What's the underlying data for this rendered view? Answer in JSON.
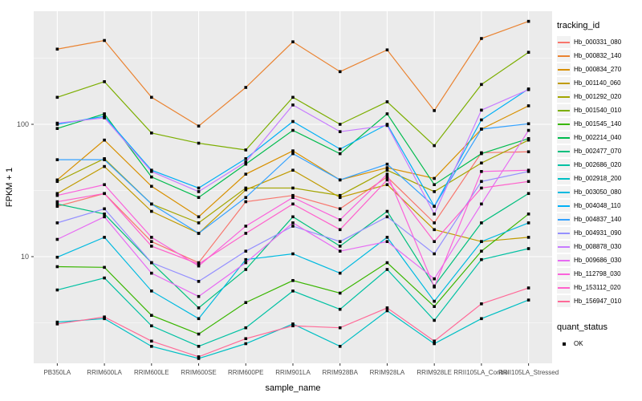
{
  "chart_data": {
    "type": "line",
    "title": "",
    "xlabel": "sample_name",
    "ylabel": "FPKM + 1",
    "y_scale": "log10",
    "yticks": [
      10,
      100
    ],
    "ylim": [
      1.56,
      716
    ],
    "grid": "on",
    "panel_bg": "#EBEBEB",
    "grid_color": "#FFFFFF",
    "axis_text_color": "#4D4D4D",
    "marker": "black-square",
    "legend_title": "tracking_id",
    "quant_legend_title": "quant_status",
    "quant_legend_label": "OK",
    "categories": [
      "PB350LA",
      "RRIM600LA",
      "RRIM600LE",
      "RRIM600SE",
      "RRIM600PE",
      "RRIM901LA",
      "RRIM928BA",
      "RRIM928LA",
      "RRIM928LE",
      "RRII105LA_Control",
      "RRII105LA_Stressed"
    ],
    "series": [
      {
        "name": "Hb_000331_080",
        "color": "#F8766D",
        "values": [
          24,
          30,
          13,
          9,
          26,
          29,
          23,
          40,
          18,
          61,
          62
        ]
      },
      {
        "name": "Hb_000832_140",
        "color": "#EA8331",
        "values": [
          370,
          430,
          160,
          97,
          190,
          420,
          250,
          365,
          127,
          445,
          600
        ]
      },
      {
        "name": "Hb_000834_270",
        "color": "#D89000",
        "values": [
          38,
          76,
          34,
          20,
          42,
          63,
          38,
          47,
          39,
          92,
          138
        ]
      },
      {
        "name": "Hb_001140_060",
        "color": "#C09B00",
        "values": [
          30,
          48,
          22,
          15,
          32,
          45,
          28,
          35,
          16,
          13,
          14
        ]
      },
      {
        "name": "Hb_001292_020",
        "color": "#A3A500",
        "values": [
          37,
          55,
          25,
          18,
          33,
          33,
          29,
          45,
          31,
          51,
          76
        ]
      },
      {
        "name": "Hb_001540_010",
        "color": "#7CAE00",
        "values": [
          160,
          210,
          86,
          72,
          64,
          160,
          100,
          148,
          69,
          200,
          350
        ]
      },
      {
        "name": "Hb_001545_140",
        "color": "#39B600",
        "values": [
          8.4,
          8.3,
          3.6,
          2.6,
          4.5,
          6.6,
          5.3,
          9,
          4.2,
          11,
          21
        ]
      },
      {
        "name": "Hb_002214_040",
        "color": "#00BB4E",
        "values": [
          93,
          120,
          40,
          28,
          50,
          90,
          60,
          120,
          35,
          60,
          78
        ]
      },
      {
        "name": "Hb_002477_070",
        "color": "#00BF7D",
        "values": [
          25,
          21,
          9,
          4.1,
          8,
          20,
          12,
          22,
          6,
          18,
          30
        ]
      },
      {
        "name": "Hb_002686_020",
        "color": "#00C1A3",
        "values": [
          5.6,
          6.9,
          3,
          2.1,
          2.9,
          5.5,
          4,
          8,
          3.3,
          9.5,
          11.5
        ]
      },
      {
        "name": "Hb_002918_200",
        "color": "#00BFC4",
        "values": [
          3.2,
          3.4,
          2.1,
          1.7,
          2.2,
          3.1,
          2.1,
          3.9,
          2.2,
          3.4,
          4.7
        ]
      },
      {
        "name": "Hb_003050_080",
        "color": "#00BAE0",
        "values": [
          9.9,
          14,
          5.5,
          3.4,
          9.5,
          10.5,
          7.5,
          14,
          4.6,
          13,
          18
        ]
      },
      {
        "name": "Hb_004048_110",
        "color": "#00B0F6",
        "values": [
          100,
          115,
          45,
          33,
          55,
          105,
          65,
          100,
          24,
          108,
          185
        ]
      },
      {
        "name": "Hb_004837_140",
        "color": "#35A2FF",
        "values": [
          54,
          54,
          25,
          15,
          28,
          60,
          38,
          50,
          24,
          92,
          101
        ]
      },
      {
        "name": "Hb_004931_090",
        "color": "#9590FF",
        "values": [
          18,
          23,
          9,
          6.5,
          11,
          17,
          13,
          20,
          10.5,
          37,
          44
        ]
      },
      {
        "name": "Hb_008878_030",
        "color": "#C77CFF",
        "values": [
          102,
          112,
          44,
          31,
          52,
          140,
          88,
          98,
          21,
          128,
          183
        ]
      },
      {
        "name": "Hb_009686_030",
        "color": "#E76BF3",
        "values": [
          13.5,
          20,
          7.5,
          5,
          9,
          18,
          11,
          13,
          6.8,
          25,
          90
        ]
      },
      {
        "name": "Hb_112798_030",
        "color": "#FA62DB",
        "values": [
          29,
          35,
          14,
          8.5,
          17,
          28,
          19,
          42,
          5.9,
          44,
          45
        ]
      },
      {
        "name": "Hb_153112_020",
        "color": "#FF61CC",
        "values": [
          26,
          30,
          12,
          8.8,
          15,
          25,
          16,
          38,
          13,
          33,
          37
        ]
      },
      {
        "name": "Hb_156947_010",
        "color": "#FF6A98",
        "values": [
          3.1,
          3.5,
          2.3,
          1.75,
          2.4,
          3,
          2.9,
          4.1,
          2.3,
          4.4,
          5.8
        ]
      }
    ]
  }
}
